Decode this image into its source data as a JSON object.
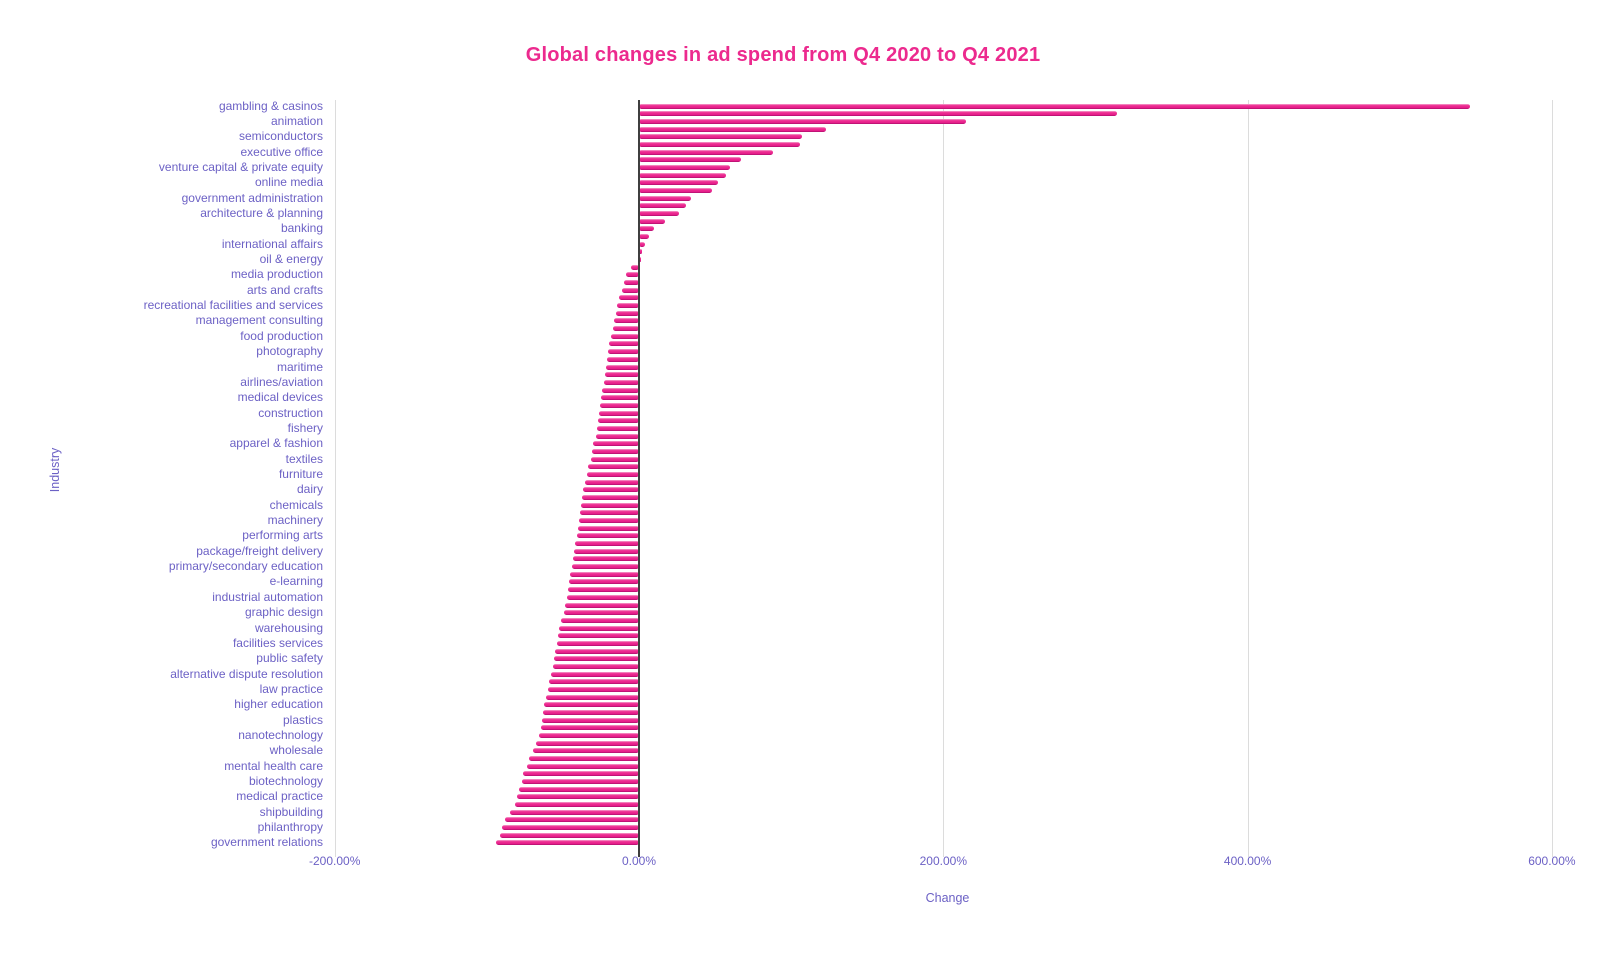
{
  "page": {
    "background": "#ffffff",
    "accent_pink": "#e81f8b",
    "label_purple": "#6c61c5",
    "gridline_color": "#dcdcdc",
    "zero_line_color": "#3f3f3f"
  },
  "chart_data": {
    "type": "bar",
    "orientation": "horizontal",
    "title": "Global changes in ad spend from Q4 2020 to Q4 2021",
    "xlabel": "Change",
    "ylabel": "Industry",
    "unit": "%",
    "xlim": [
      -200,
      650
    ],
    "grid": "vertical",
    "legend": "none",
    "x_tick_values": [
      -200,
      0,
      200,
      400,
      600
    ],
    "x_tick_labels": [
      "-200.00%",
      "0.00%",
      "200.00%",
      "400.00%",
      "600.00%"
    ],
    "points": [
      {
        "label": "gambling & casinos",
        "value": 546
      },
      {
        "label": "",
        "value": 314
      },
      {
        "label": "animation",
        "value": 215
      },
      {
        "label": "",
        "value": 123
      },
      {
        "label": "semiconductors",
        "value": 107
      },
      {
        "label": "",
        "value": 106
      },
      {
        "label": "executive office",
        "value": 88
      },
      {
        "label": "",
        "value": 67
      },
      {
        "label": "venture capital & private equity",
        "value": 60
      },
      {
        "label": "",
        "value": 57
      },
      {
        "label": "online media",
        "value": 52
      },
      {
        "label": "",
        "value": 48
      },
      {
        "label": "government administration",
        "value": 34.5
      },
      {
        "label": "",
        "value": 31
      },
      {
        "label": "architecture & planning",
        "value": 26
      },
      {
        "label": "",
        "value": 17
      },
      {
        "label": "banking",
        "value": 10
      },
      {
        "label": "",
        "value": 6.5
      },
      {
        "label": "international affairs",
        "value": 4
      },
      {
        "label": "",
        "value": 2.2
      },
      {
        "label": "oil & energy",
        "value": 1.3
      },
      {
        "label": "",
        "value": -5
      },
      {
        "label": "media production",
        "value": -8.5
      },
      {
        "label": "",
        "value": -10
      },
      {
        "label": "arts and crafts",
        "value": -11.4
      },
      {
        "label": "",
        "value": -13
      },
      {
        "label": "recreational facilities and services",
        "value": -14.3
      },
      {
        "label": "",
        "value": -15.1
      },
      {
        "label": "management consulting",
        "value": -16.4
      },
      {
        "label": "",
        "value": -17.3
      },
      {
        "label": "food production",
        "value": -18.6
      },
      {
        "label": "",
        "value": -19.5
      },
      {
        "label": "photography",
        "value": -20.2
      },
      {
        "label": "",
        "value": -21
      },
      {
        "label": "maritime",
        "value": -21.5
      },
      {
        "label": "",
        "value": -22.2
      },
      {
        "label": "airlines/aviation",
        "value": -23
      },
      {
        "label": "",
        "value": -24.3
      },
      {
        "label": "medical devices",
        "value": -25
      },
      {
        "label": "",
        "value": -25.6
      },
      {
        "label": "construction",
        "value": -26.1
      },
      {
        "label": "",
        "value": -27.2
      },
      {
        "label": "fishery",
        "value": -27.8
      },
      {
        "label": "",
        "value": -28.3
      },
      {
        "label": "apparel & fashion",
        "value": -30
      },
      {
        "label": "",
        "value": -31.1
      },
      {
        "label": "textiles",
        "value": -31.8
      },
      {
        "label": "",
        "value": -33.3
      },
      {
        "label": "furniture",
        "value": -34.4
      },
      {
        "label": "",
        "value": -35.5
      },
      {
        "label": "dairy",
        "value": -36.6
      },
      {
        "label": "",
        "value": -37.5
      },
      {
        "label": "chemicals",
        "value": -38.1
      },
      {
        "label": "",
        "value": -38.8
      },
      {
        "label": "machinery",
        "value": -39.4
      },
      {
        "label": "",
        "value": -40.1
      },
      {
        "label": "performing arts",
        "value": -41
      },
      {
        "label": "",
        "value": -41.9
      },
      {
        "label": "package/freight delivery",
        "value": -42.5
      },
      {
        "label": "",
        "value": -43.6
      },
      {
        "label": "primary/secondary education",
        "value": -44.2
      },
      {
        "label": "",
        "value": -45.2
      },
      {
        "label": "e-learning",
        "value": -45.8
      },
      {
        "label": "",
        "value": -46.9
      },
      {
        "label": "industrial automation",
        "value": -47.5
      },
      {
        "label": "",
        "value": -48.4
      },
      {
        "label": "graphic design",
        "value": -49.5
      },
      {
        "label": "",
        "value": -51.5
      },
      {
        "label": "warehousing",
        "value": -52.4
      },
      {
        "label": "",
        "value": -53.3
      },
      {
        "label": "facilities services",
        "value": -54.1
      },
      {
        "label": "",
        "value": -55
      },
      {
        "label": "public safety",
        "value": -55.7
      },
      {
        "label": "",
        "value": -56.7
      },
      {
        "label": "alternative dispute resolution",
        "value": -57.9
      },
      {
        "label": "",
        "value": -59
      },
      {
        "label": "law practice",
        "value": -60
      },
      {
        "label": "",
        "value": -61.1
      },
      {
        "label": "higher education",
        "value": -62.2
      },
      {
        "label": "",
        "value": -63.3
      },
      {
        "label": "plastics",
        "value": -64
      },
      {
        "label": "",
        "value": -64.6
      },
      {
        "label": "nanotechnology",
        "value": -65.5
      },
      {
        "label": "",
        "value": -67.7
      },
      {
        "label": "wholesale",
        "value": -69.9
      },
      {
        "label": "",
        "value": -72.1
      },
      {
        "label": "mental health care",
        "value": -73.4
      },
      {
        "label": "",
        "value": -76
      },
      {
        "label": "biotechnology",
        "value": -77
      },
      {
        "label": "",
        "value": -78.7
      },
      {
        "label": "medical practice",
        "value": -80
      },
      {
        "label": "",
        "value": -81.5
      },
      {
        "label": "shipbuilding",
        "value": -85
      },
      {
        "label": "",
        "value": -88
      },
      {
        "label": "philanthropy",
        "value": -90
      },
      {
        "label": "",
        "value": -91.5
      },
      {
        "label": "government relations",
        "value": -94
      }
    ]
  }
}
